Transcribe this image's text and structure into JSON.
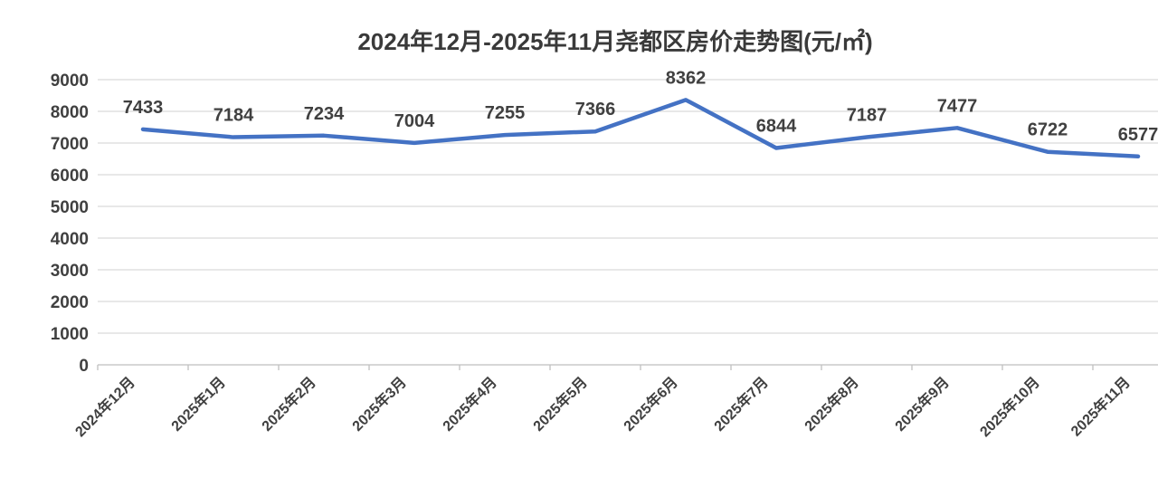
{
  "chart_data": {
    "type": "line",
    "title": "2024年12月-2025年11月尧都区房价走势图(元/㎡)",
    "categories": [
      "2024年12月",
      "2025年1月",
      "2025年2月",
      "2025年3月",
      "2025年4月",
      "2025年5月",
      "2025年6月",
      "2025年7月",
      "2025年8月",
      "2025年9月",
      "2025年10月",
      "2025年11月"
    ],
    "values": [
      7433,
      7184,
      7234,
      7004,
      7255,
      7366,
      8362,
      6844,
      7187,
      7477,
      6722,
      6577
    ],
    "ytick_labels": [
      "0",
      "1000",
      "2000",
      "3000",
      "4000",
      "5000",
      "6000",
      "7000",
      "8000",
      "9000"
    ],
    "ylim": [
      0,
      9000
    ],
    "ytick_step": 1000,
    "grid": true,
    "legend_position": "none",
    "data_labels_shown": true,
    "colors": {
      "line": "#4472C4",
      "text": "#404040",
      "title": "#3A3A3A",
      "gridline": "#D9D9D9",
      "axis": "#BFBFBF",
      "background": "#FFFFFF"
    }
  }
}
